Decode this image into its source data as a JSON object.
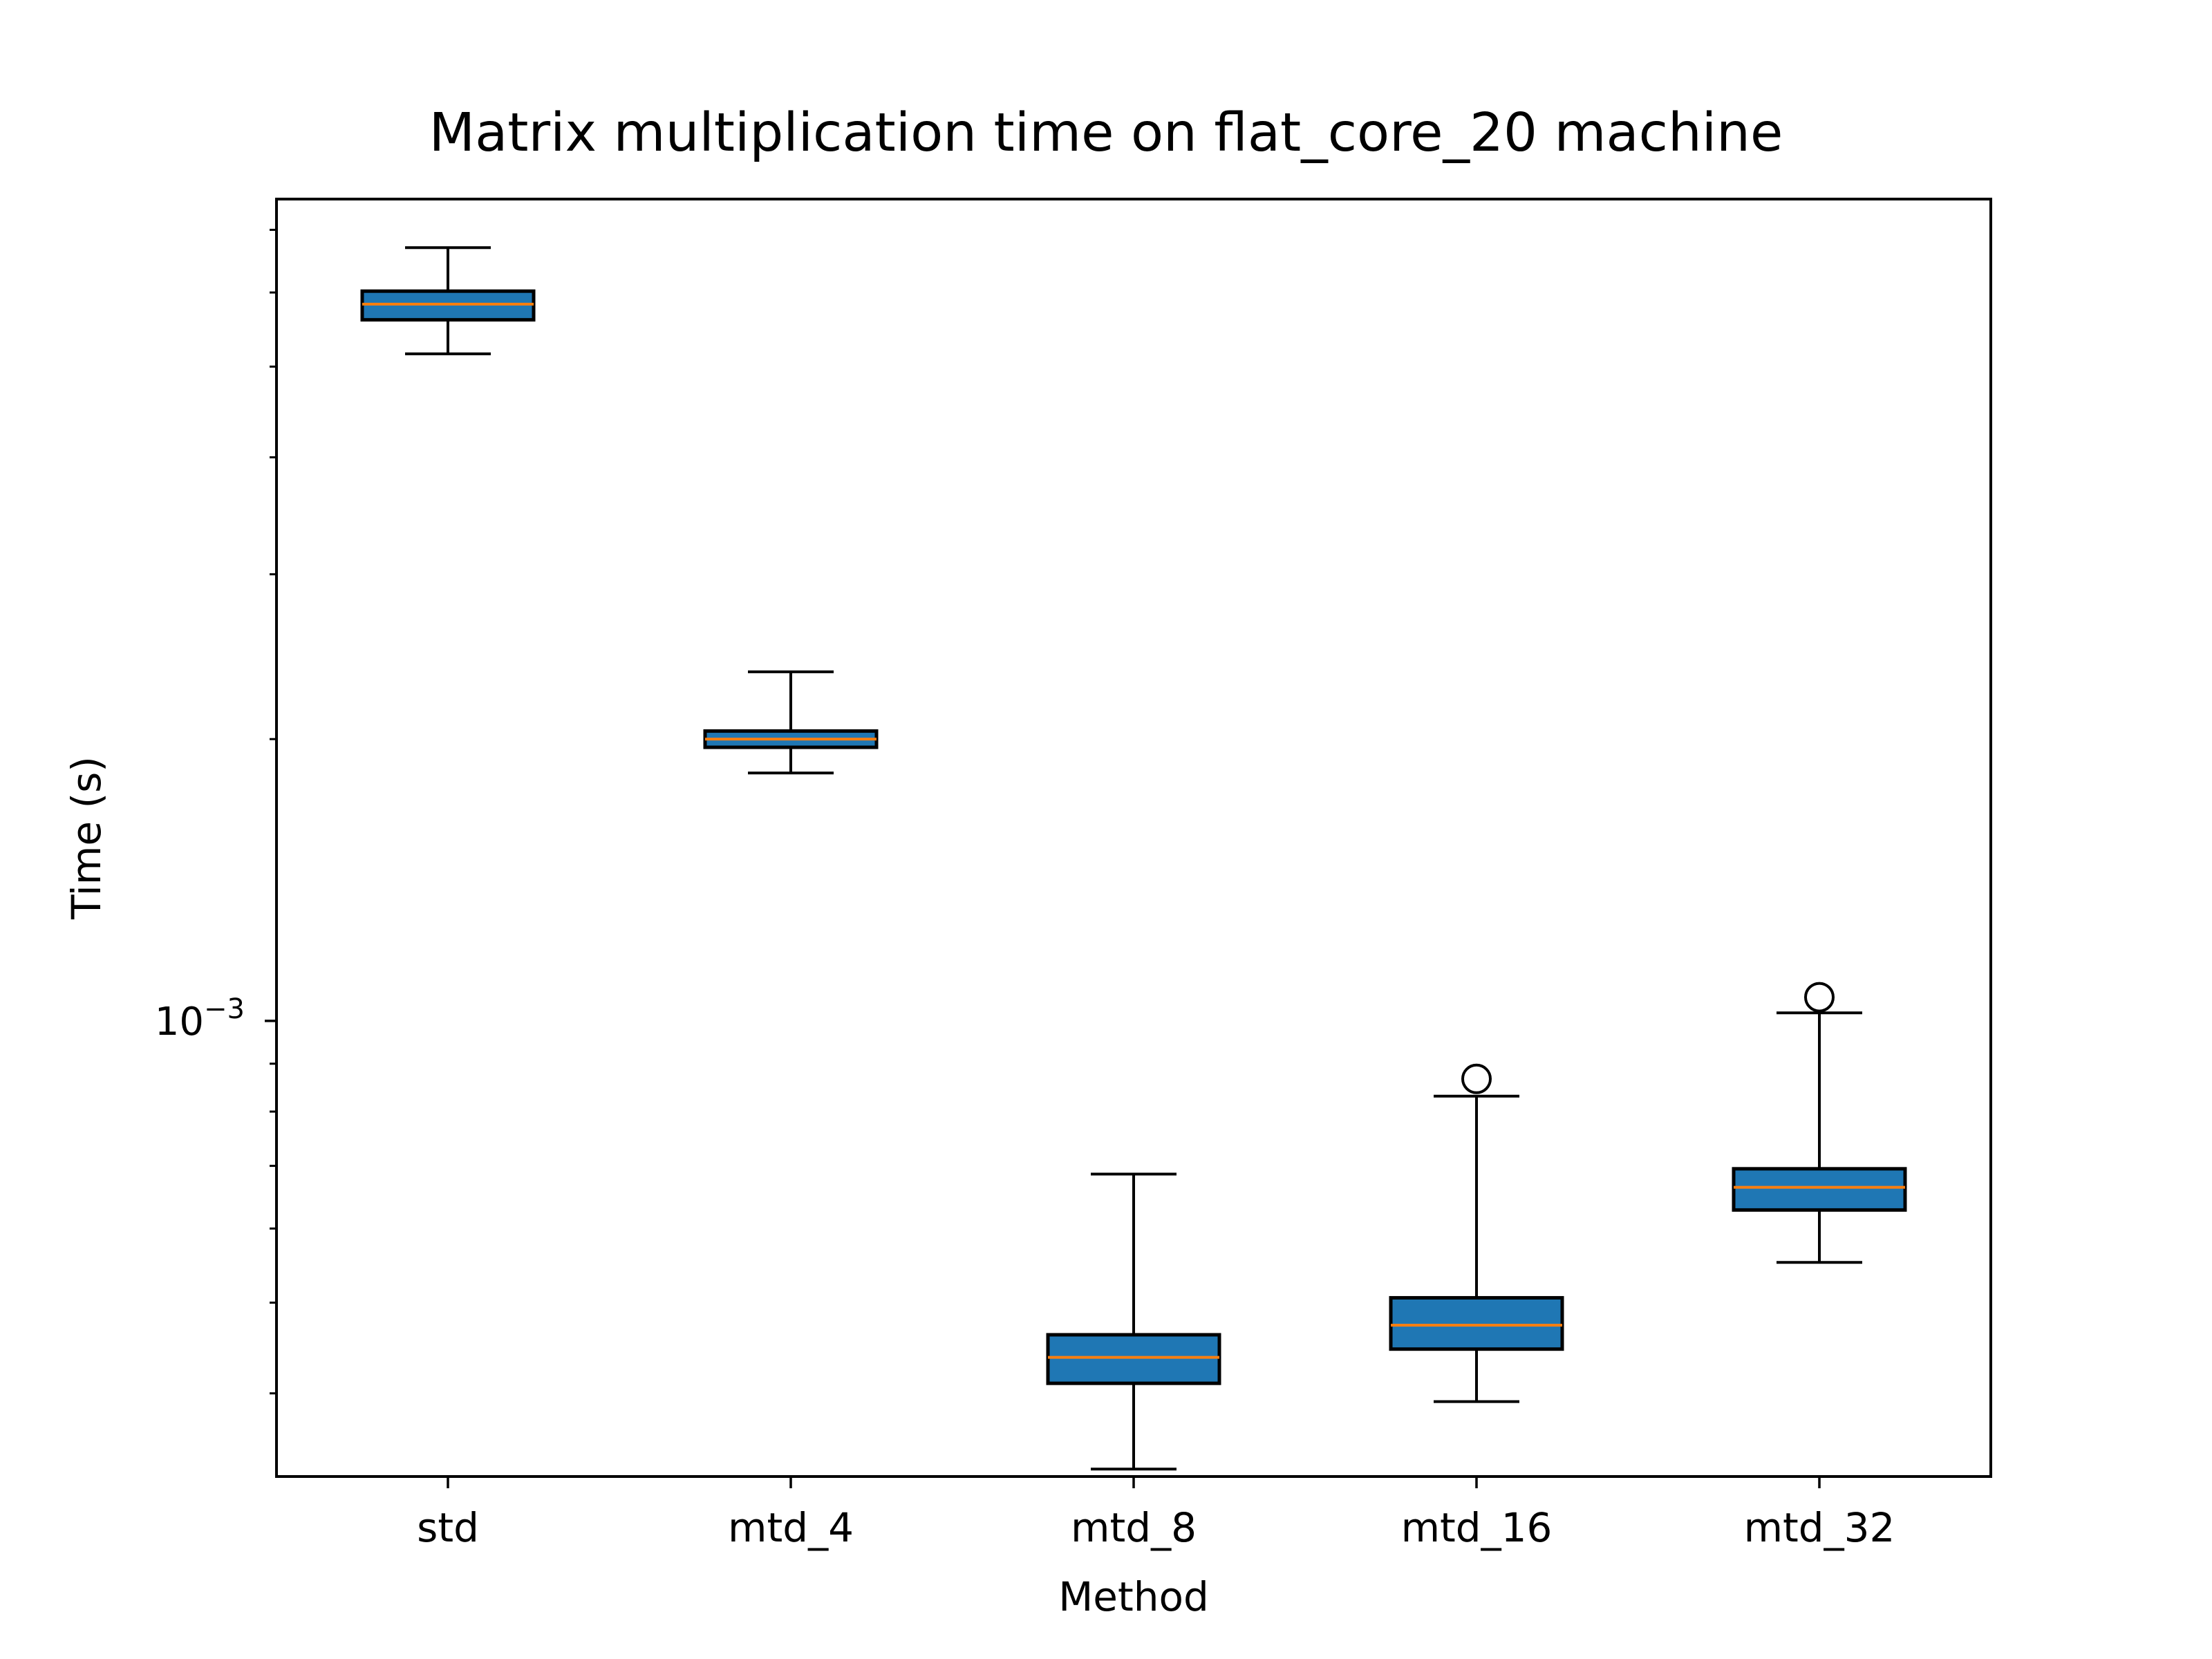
{
  "chart_data": {
    "type": "box",
    "title": "Matrix multiplication time on flat_core_20 machine",
    "xlabel": "Method",
    "ylabel": "Time (s)",
    "y_scale": "log",
    "ylim": [
      0.000326,
      0.00755
    ],
    "y_major_tick": {
      "value": 0.001,
      "base": "10",
      "exponent": "−3"
    },
    "y_minor_ticks": [
      0.0003,
      0.0004,
      0.0005,
      0.0006,
      0.0007,
      0.0008,
      0.0009,
      0.002,
      0.003,
      0.004,
      0.005,
      0.006,
      0.007
    ],
    "categories": [
      "std",
      "mtd_4",
      "mtd_8",
      "mtd_16",
      "mtd_32"
    ],
    "boxes": [
      {
        "whisker_low": 0.00516,
        "q1": 0.00561,
        "median": 0.00583,
        "q3": 0.00602,
        "whisker_high": 0.0067,
        "outliers": []
      },
      {
        "whisker_low": 0.00184,
        "q1": 0.00196,
        "median": 0.002,
        "q3": 0.00204,
        "whisker_high": 0.00236,
        "outliers": []
      },
      {
        "whisker_low": 0.000332,
        "q1": 0.00041,
        "median": 0.000437,
        "q3": 0.000462,
        "whisker_high": 0.000686,
        "outliers": []
      },
      {
        "whisker_low": 0.000392,
        "q1": 0.000446,
        "median": 0.000473,
        "q3": 0.000506,
        "whisker_high": 0.000831,
        "outliers": [
          0.000867
        ]
      },
      {
        "whisker_low": 0.000552,
        "q1": 0.000628,
        "median": 0.000664,
        "q3": 0.000695,
        "whisker_high": 0.00102,
        "outliers": [
          0.00106
        ]
      }
    ],
    "colors": {
      "box_fill": "#1f77b4",
      "median": "#ff7f0e",
      "edge": "#000000"
    },
    "grid": false,
    "legend": "none"
  }
}
